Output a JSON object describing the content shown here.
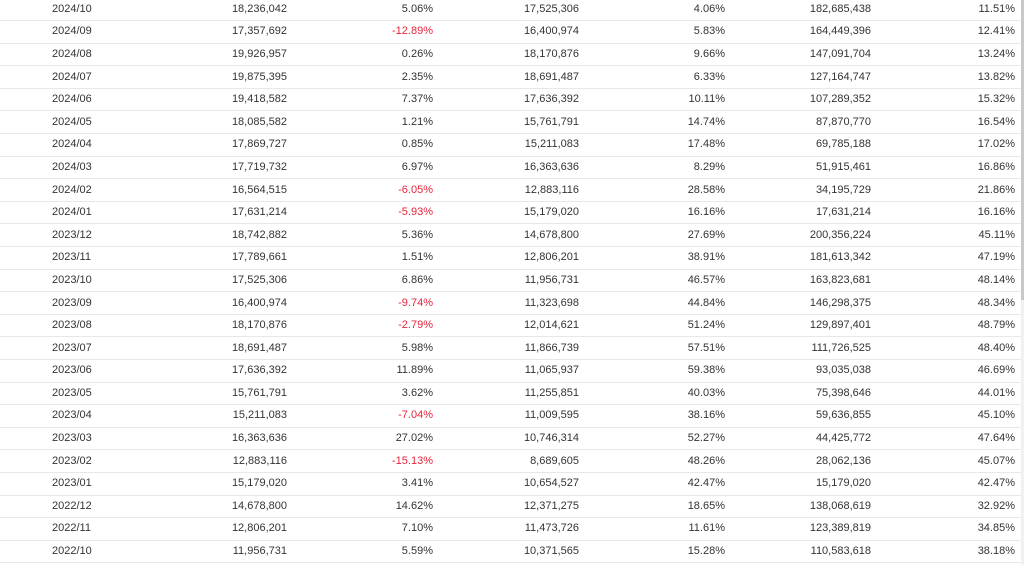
{
  "colors": {
    "text": "#333333",
    "negative": "#e8243c",
    "row_border": "#e8e8e8"
  },
  "rows": [
    {
      "month": "2024/10",
      "v1": "18,236,042",
      "p1": "5.06%",
      "v2": "17,525,306",
      "p2": "4.06%",
      "v3": "182,685,438",
      "p3": "11.51%"
    },
    {
      "month": "2024/09",
      "v1": "17,357,692",
      "p1": "-12.89%",
      "v2": "16,400,974",
      "p2": "5.83%",
      "v3": "164,449,396",
      "p3": "12.41%"
    },
    {
      "month": "2024/08",
      "v1": "19,926,957",
      "p1": "0.26%",
      "v2": "18,170,876",
      "p2": "9.66%",
      "v3": "147,091,704",
      "p3": "13.24%"
    },
    {
      "month": "2024/07",
      "v1": "19,875,395",
      "p1": "2.35%",
      "v2": "18,691,487",
      "p2": "6.33%",
      "v3": "127,164,747",
      "p3": "13.82%"
    },
    {
      "month": "2024/06",
      "v1": "19,418,582",
      "p1": "7.37%",
      "v2": "17,636,392",
      "p2": "10.11%",
      "v3": "107,289,352",
      "p3": "15.32%"
    },
    {
      "month": "2024/05",
      "v1": "18,085,582",
      "p1": "1.21%",
      "v2": "15,761,791",
      "p2": "14.74%",
      "v3": "87,870,770",
      "p3": "16.54%"
    },
    {
      "month": "2024/04",
      "v1": "17,869,727",
      "p1": "0.85%",
      "v2": "15,211,083",
      "p2": "17.48%",
      "v3": "69,785,188",
      "p3": "17.02%"
    },
    {
      "month": "2024/03",
      "v1": "17,719,732",
      "p1": "6.97%",
      "v2": "16,363,636",
      "p2": "8.29%",
      "v3": "51,915,461",
      "p3": "16.86%"
    },
    {
      "month": "2024/02",
      "v1": "16,564,515",
      "p1": "-6.05%",
      "v2": "12,883,116",
      "p2": "28.58%",
      "v3": "34,195,729",
      "p3": "21.86%"
    },
    {
      "month": "2024/01",
      "v1": "17,631,214",
      "p1": "-5.93%",
      "v2": "15,179,020",
      "p2": "16.16%",
      "v3": "17,631,214",
      "p3": "16.16%"
    },
    {
      "month": "2023/12",
      "v1": "18,742,882",
      "p1": "5.36%",
      "v2": "14,678,800",
      "p2": "27.69%",
      "v3": "200,356,224",
      "p3": "45.11%"
    },
    {
      "month": "2023/11",
      "v1": "17,789,661",
      "p1": "1.51%",
      "v2": "12,806,201",
      "p2": "38.91%",
      "v3": "181,613,342",
      "p3": "47.19%"
    },
    {
      "month": "2023/10",
      "v1": "17,525,306",
      "p1": "6.86%",
      "v2": "11,956,731",
      "p2": "46.57%",
      "v3": "163,823,681",
      "p3": "48.14%"
    },
    {
      "month": "2023/09",
      "v1": "16,400,974",
      "p1": "-9.74%",
      "v2": "11,323,698",
      "p2": "44.84%",
      "v3": "146,298,375",
      "p3": "48.34%"
    },
    {
      "month": "2023/08",
      "v1": "18,170,876",
      "p1": "-2.79%",
      "v2": "12,014,621",
      "p2": "51.24%",
      "v3": "129,897,401",
      "p3": "48.79%"
    },
    {
      "month": "2023/07",
      "v1": "18,691,487",
      "p1": "5.98%",
      "v2": "11,866,739",
      "p2": "57.51%",
      "v3": "111,726,525",
      "p3": "48.40%"
    },
    {
      "month": "2023/06",
      "v1": "17,636,392",
      "p1": "11.89%",
      "v2": "11,065,937",
      "p2": "59.38%",
      "v3": "93,035,038",
      "p3": "46.69%"
    },
    {
      "month": "2023/05",
      "v1": "15,761,791",
      "p1": "3.62%",
      "v2": "11,255,851",
      "p2": "40.03%",
      "v3": "75,398,646",
      "p3": "44.01%"
    },
    {
      "month": "2023/04",
      "v1": "15,211,083",
      "p1": "-7.04%",
      "v2": "11,009,595",
      "p2": "38.16%",
      "v3": "59,636,855",
      "p3": "45.10%"
    },
    {
      "month": "2023/03",
      "v1": "16,363,636",
      "p1": "27.02%",
      "v2": "10,746,314",
      "p2": "52.27%",
      "v3": "44,425,772",
      "p3": "47.64%"
    },
    {
      "month": "2023/02",
      "v1": "12,883,116",
      "p1": "-15.13%",
      "v2": "8,689,605",
      "p2": "48.26%",
      "v3": "28,062,136",
      "p3": "45.07%"
    },
    {
      "month": "2023/01",
      "v1": "15,179,020",
      "p1": "3.41%",
      "v2": "10,654,527",
      "p2": "42.47%",
      "v3": "15,179,020",
      "p3": "42.47%"
    },
    {
      "month": "2022/12",
      "v1": "14,678,800",
      "p1": "14.62%",
      "v2": "12,371,275",
      "p2": "18.65%",
      "v3": "138,068,619",
      "p3": "32.92%"
    },
    {
      "month": "2022/11",
      "v1": "12,806,201",
      "p1": "7.10%",
      "v2": "11,473,726",
      "p2": "11.61%",
      "v3": "123,389,819",
      "p3": "34.85%"
    },
    {
      "month": "2022/10",
      "v1": "11,956,731",
      "p1": "5.59%",
      "v2": "10,371,565",
      "p2": "15.28%",
      "v3": "110,583,618",
      "p3": "38.18%"
    }
  ]
}
